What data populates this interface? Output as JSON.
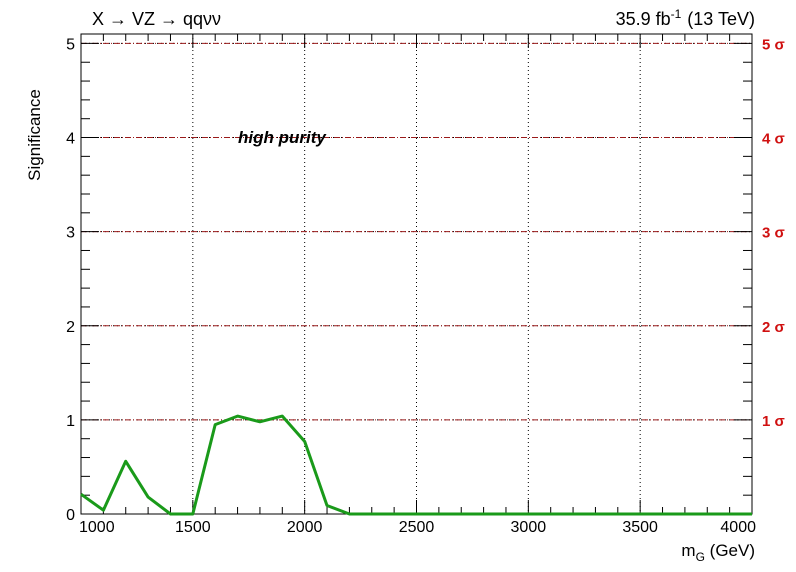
{
  "chart_data": {
    "type": "line",
    "title_left": "X → VZ → qqνν",
    "lumi": "35.9 fb",
    "lumi_sup": "-1",
    "energy": "(13 TeV)",
    "annotation": "high purity",
    "xlabel_main": "m",
    "xlabel_sub": "G",
    "xlabel_unit": " (GeV)",
    "ylabel": "Significance",
    "xlim": [
      1000,
      4000
    ],
    "ylim": [
      0,
      5.1
    ],
    "x_ticks": [
      "1000",
      "1500",
      "2000",
      "2500",
      "3000",
      "3500",
      "4000"
    ],
    "y_ticks": [
      "0",
      "1",
      "2",
      "3",
      "4",
      "5"
    ],
    "sigma_lines": [
      {
        "value": 1,
        "label": "1 σ"
      },
      {
        "value": 2,
        "label": "2 σ"
      },
      {
        "value": 3,
        "label": "3 σ"
      },
      {
        "value": 4,
        "label": "4 σ"
      },
      {
        "value": 5,
        "label": "5 σ"
      }
    ],
    "grid": true,
    "series": [
      {
        "color": "#1a9a1a",
        "x": [
          1000,
          1100,
          1200,
          1300,
          1400,
          1500,
          1600,
          1700,
          1800,
          1900,
          2000,
          2100,
          2200,
          2300,
          2400,
          2500,
          2600,
          2700,
          2800,
          2900,
          3000,
          3100,
          3200,
          3300,
          3400,
          3500,
          3600,
          3700,
          3800,
          3900,
          4000
        ],
        "y": [
          0.21,
          0.04,
          0.56,
          0.18,
          0.0,
          0.0,
          0.95,
          1.04,
          0.98,
          1.04,
          0.77,
          0.09,
          0.0,
          0.0,
          0.0,
          0.0,
          0.0,
          0.0,
          0.0,
          0.0,
          0.0,
          0.0,
          0.0,
          0.0,
          0.0,
          0.0,
          0.0,
          0.0,
          0.0,
          0.0,
          0.0
        ]
      }
    ]
  }
}
